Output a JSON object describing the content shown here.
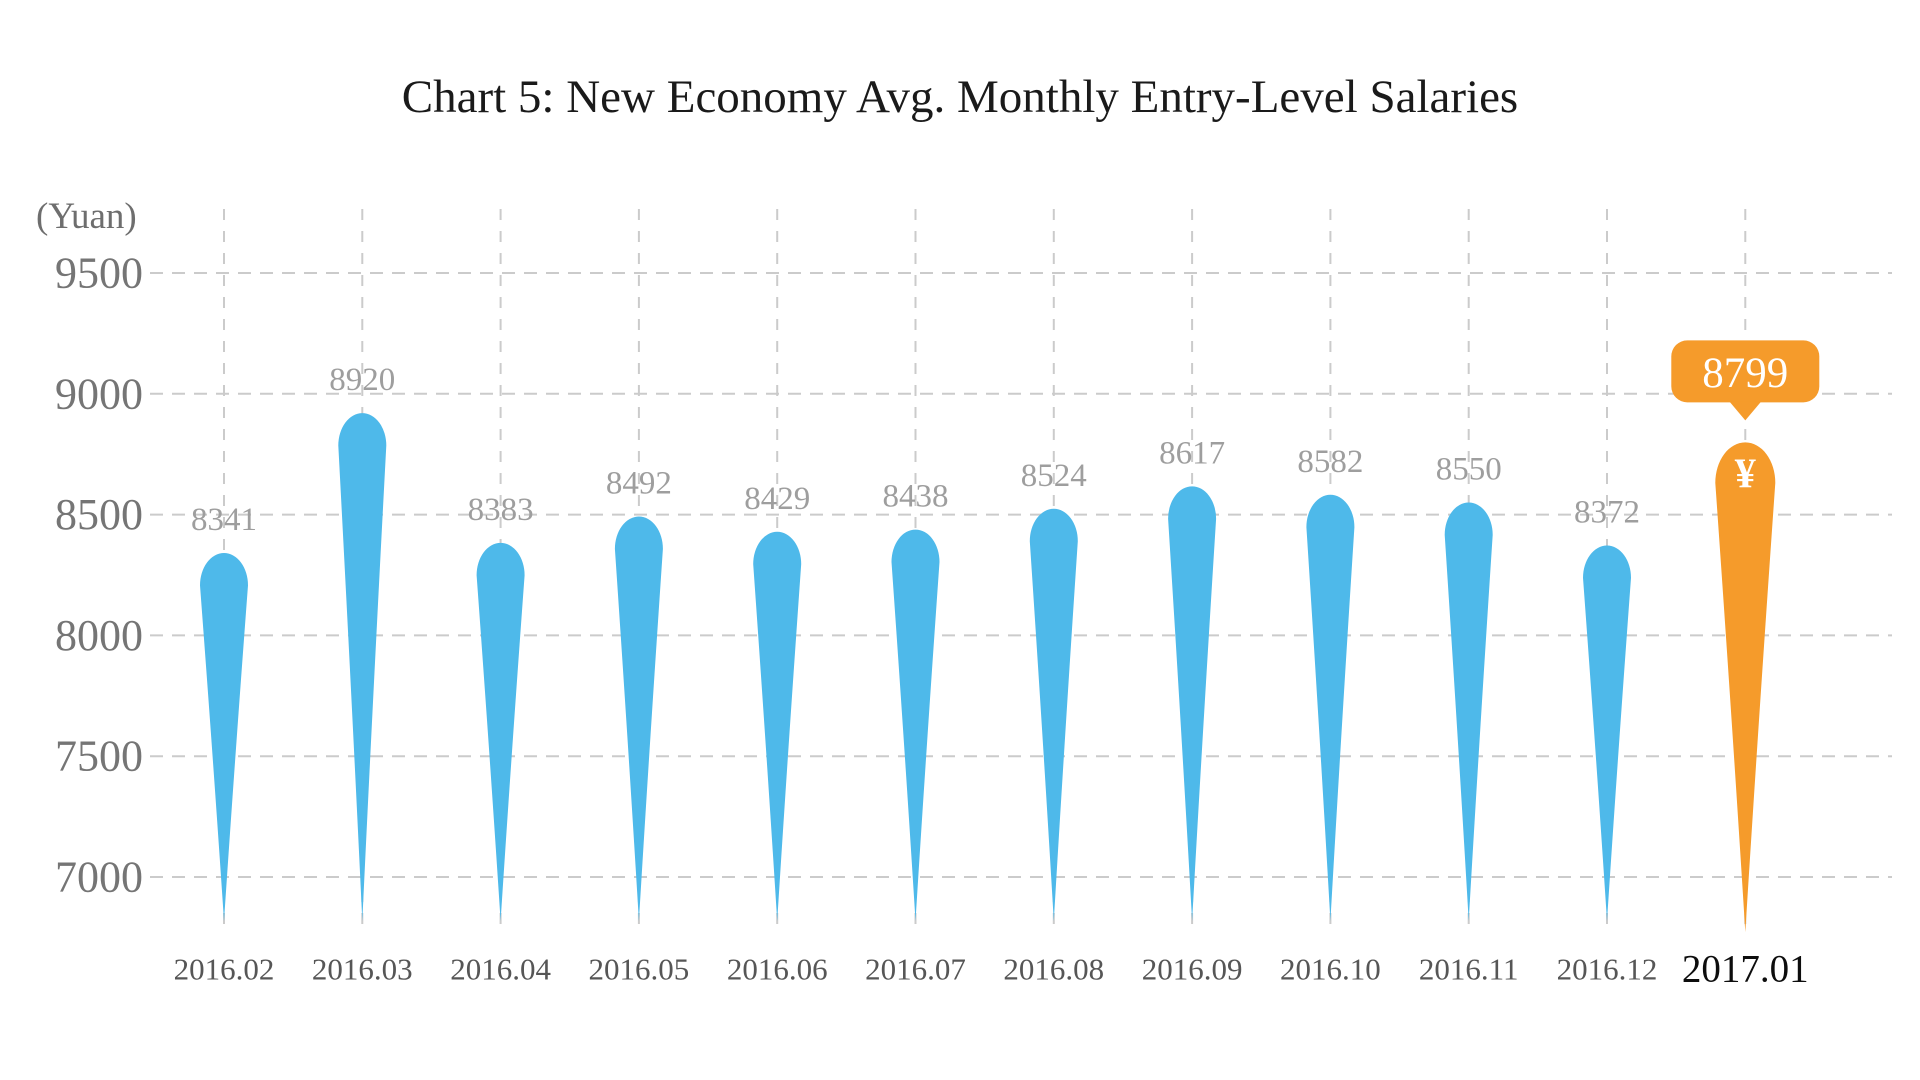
{
  "chart_data": {
    "type": "bar",
    "bar_shape": "teardrop",
    "title": "Chart 5: New Economy Avg. Monthly Entry-Level Salaries",
    "ylabel": "(Yuan)",
    "xlabel": "",
    "categories": [
      "2016.02",
      "2016.03",
      "2016.04",
      "2016.05",
      "2016.06",
      "2016.07",
      "2016.08",
      "2016.09",
      "2016.10",
      "2016.11",
      "2016.12",
      "2017.01"
    ],
    "values": [
      8341,
      8920,
      8383,
      8492,
      8429,
      8438,
      8524,
      8617,
      8582,
      8550,
      8372,
      8799
    ],
    "y_ticks": [
      9500,
      9000,
      8500,
      8000,
      7500,
      7000
    ],
    "ylim": [
      6800,
      9800
    ],
    "grid": {
      "horizontal": true,
      "vertical": true,
      "style": "dashed"
    },
    "legend": "none",
    "highlight": {
      "category": "2017.01",
      "value": 8799,
      "callout_label": "8799",
      "currency_icon": "¥"
    },
    "colors": {
      "bar": "#4EB9EA",
      "highlight_bar": "#F59B2B",
      "gridline": "#CBCBCB",
      "value_label": "#9E9E9E",
      "y_tick_label": "#757575",
      "y_unit_label": "#6E6E6E",
      "x_label": "#565656",
      "x_label_highlight": "#0D0D0D",
      "title": "#1A1A1A",
      "callout_text": "#FFFFFF",
      "background": "#FFFFFF"
    }
  }
}
